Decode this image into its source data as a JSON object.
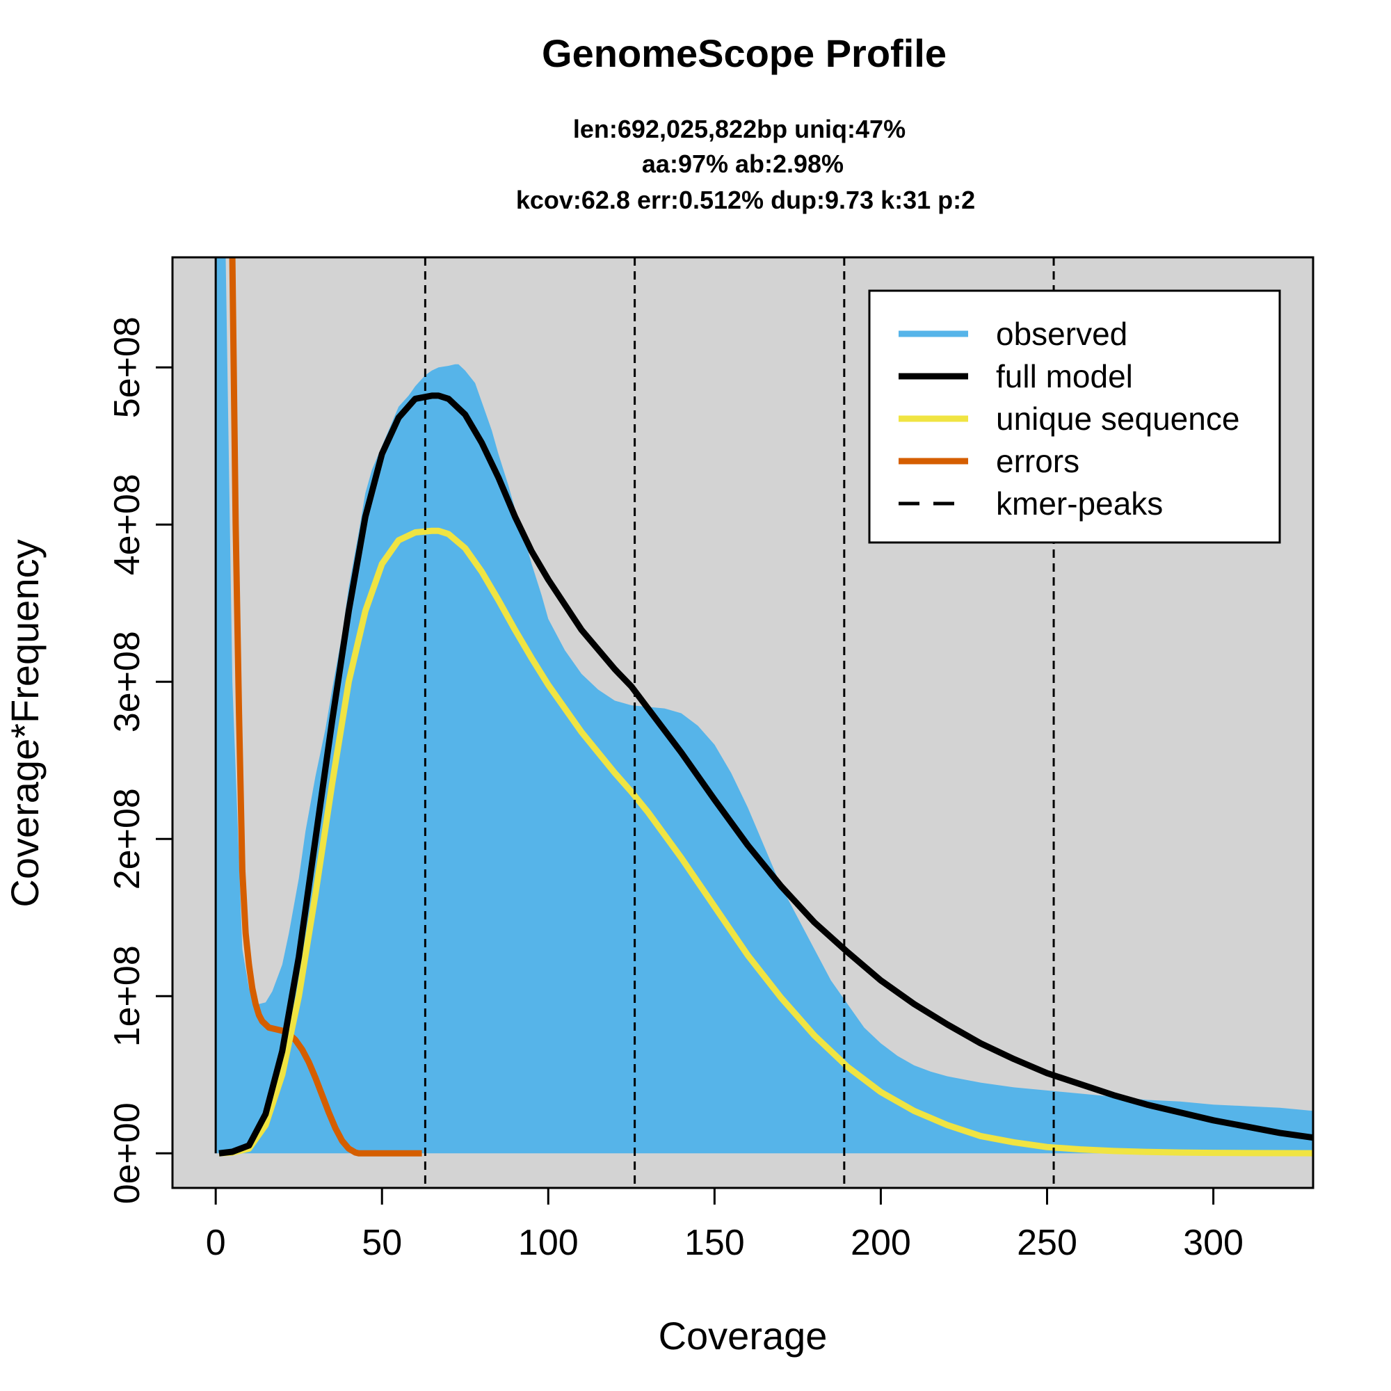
{
  "chart_data": {
    "type": "area",
    "title": "GenomeScope Profile",
    "subtitle_lines": [
      "len:692,025,822bp uniq:47%",
      "aa:97% ab:2.98%",
      "kcov:62.8 err:0.512%  dup:9.73  k:31 p:2"
    ],
    "xlabel": "Coverage",
    "ylabel": "Coverage*Frequency",
    "xlim": [
      -13,
      330
    ],
    "ylim": [
      -22000000,
      570000000
    ],
    "x_ticks": [
      0,
      50,
      100,
      150,
      200,
      250,
      300
    ],
    "x_tick_labels": [
      "0",
      "50",
      "100",
      "150",
      "200",
      "250",
      "300"
    ],
    "y_ticks": [
      0,
      100000000,
      200000000,
      300000000,
      400000000,
      500000000
    ],
    "y_tick_labels": [
      "0e+00",
      "1e+08",
      "2e+08",
      "3e+08",
      "4e+08",
      "5e+08"
    ],
    "kmer_peaks": [
      63,
      126,
      189,
      252
    ],
    "colors": {
      "background": "#d3d3d3",
      "observed": "#56b4e9",
      "full_model": "#000000",
      "unique_sequence": "#f0e442",
      "errors": "#d55e00",
      "kmer_peaks": "#000000"
    },
    "legend": {
      "position": "top-right",
      "entries": [
        {
          "label": "observed",
          "color": "#56b4e9",
          "style": "solid"
        },
        {
          "label": "full model",
          "color": "#000000",
          "style": "solid"
        },
        {
          "label": "unique sequence",
          "color": "#f0e442",
          "style": "solid"
        },
        {
          "label": "errors",
          "color": "#d55e00",
          "style": "solid"
        },
        {
          "label": "kmer-peaks",
          "color": "#000000",
          "style": "dashed"
        }
      ]
    },
    "series": [
      {
        "name": "observed",
        "x": [
          0,
          1,
          2,
          3,
          5,
          8,
          10,
          12,
          13,
          15,
          17,
          20,
          22,
          25,
          27,
          30,
          33,
          35,
          38,
          40,
          43,
          45,
          47,
          50,
          53,
          55,
          58,
          60,
          63,
          65,
          67,
          70,
          72,
          73,
          75,
          78,
          80,
          83,
          85,
          88,
          90,
          93,
          95,
          98,
          100,
          105,
          110,
          115,
          120,
          125,
          130,
          135,
          140,
          145,
          150,
          155,
          160,
          165,
          170,
          175,
          180,
          185,
          190,
          195,
          200,
          205,
          210,
          215,
          220,
          230,
          240,
          250,
          260,
          270,
          280,
          290,
          300,
          310,
          320,
          330
        ],
        "values": [
          570000000,
          570000000,
          570000000,
          570000000,
          300000000,
          130000000,
          105000000,
          96000000,
          95000000,
          96000000,
          103000000,
          120000000,
          140000000,
          175000000,
          205000000,
          240000000,
          270000000,
          295000000,
          330000000,
          360000000,
          395000000,
          420000000,
          435000000,
          450000000,
          465000000,
          475000000,
          482000000,
          488000000,
          495000000,
          498000000,
          500000000,
          501000000,
          502000000,
          502000000,
          498000000,
          490000000,
          478000000,
          460000000,
          445000000,
          425000000,
          410000000,
          390000000,
          375000000,
          355000000,
          340000000,
          320000000,
          305000000,
          295000000,
          288000000,
          285000000,
          284000000,
          283000000,
          280000000,
          272000000,
          260000000,
          242000000,
          220000000,
          195000000,
          170000000,
          150000000,
          130000000,
          110000000,
          95000000,
          80000000,
          70000000,
          62000000,
          56000000,
          52000000,
          49000000,
          45000000,
          42000000,
          40000000,
          38000000,
          36000000,
          34000000,
          33000000,
          31000000,
          30000000,
          29000000,
          27000000
        ]
      },
      {
        "name": "full model",
        "x": [
          1,
          5,
          10,
          15,
          20,
          25,
          30,
          35,
          40,
          45,
          50,
          55,
          60,
          65,
          67,
          70,
          75,
          80,
          85,
          90,
          95,
          100,
          110,
          120,
          125,
          130,
          140,
          150,
          160,
          170,
          180,
          190,
          200,
          210,
          220,
          230,
          240,
          250,
          260,
          270,
          280,
          290,
          300,
          310,
          320,
          330
        ],
        "values": [
          0,
          1000000,
          5000000,
          25000000,
          65000000,
          125000000,
          200000000,
          275000000,
          345000000,
          405000000,
          445000000,
          468000000,
          480000000,
          482000000,
          482000000,
          480000000,
          470000000,
          452000000,
          430000000,
          405000000,
          383000000,
          365000000,
          333000000,
          308000000,
          297000000,
          283000000,
          255000000,
          225000000,
          196000000,
          170000000,
          147000000,
          128000000,
          110000000,
          95000000,
          82000000,
          70000000,
          60000000,
          51000000,
          44000000,
          37000000,
          31000000,
          26000000,
          21000000,
          17000000,
          13000000,
          10000000
        ]
      },
      {
        "name": "unique sequence",
        "x": [
          1,
          5,
          10,
          15,
          20,
          25,
          30,
          35,
          40,
          45,
          50,
          55,
          60,
          65,
          67,
          70,
          75,
          80,
          85,
          90,
          95,
          100,
          110,
          120,
          125,
          130,
          140,
          150,
          160,
          170,
          180,
          190,
          200,
          210,
          220,
          230,
          240,
          250,
          260,
          270,
          280,
          290,
          300,
          310,
          320,
          330
        ],
        "values": [
          0,
          500000,
          3000000,
          18000000,
          50000000,
          100000000,
          165000000,
          235000000,
          300000000,
          345000000,
          375000000,
          390000000,
          395000000,
          396000000,
          396000000,
          394000000,
          385000000,
          370000000,
          352000000,
          333000000,
          315000000,
          298000000,
          268000000,
          242000000,
          230000000,
          217000000,
          188000000,
          157000000,
          126000000,
          99000000,
          75000000,
          55000000,
          39000000,
          27000000,
          18000000,
          11000000,
          7000000,
          4000000,
          2500000,
          1500000,
          900000,
          500000,
          300000,
          200000,
          100000,
          50000
        ]
      },
      {
        "name": "errors",
        "x": [
          5,
          6,
          7,
          8,
          9,
          10,
          11,
          12,
          13,
          14,
          15,
          16,
          18,
          20,
          22,
          24,
          26,
          28,
          30,
          32,
          34,
          36,
          38,
          40,
          42,
          43,
          45,
          50,
          55,
          60,
          62
        ],
        "values": [
          570000000,
          400000000,
          280000000,
          180000000,
          140000000,
          120000000,
          105000000,
          95000000,
          88000000,
          84000000,
          82000000,
          80000000,
          79000000,
          78000000,
          76000000,
          72000000,
          66000000,
          58000000,
          48000000,
          37000000,
          26000000,
          16000000,
          8000000,
          3000000,
          500000,
          0,
          0,
          0,
          0,
          0,
          0
        ]
      }
    ]
  }
}
